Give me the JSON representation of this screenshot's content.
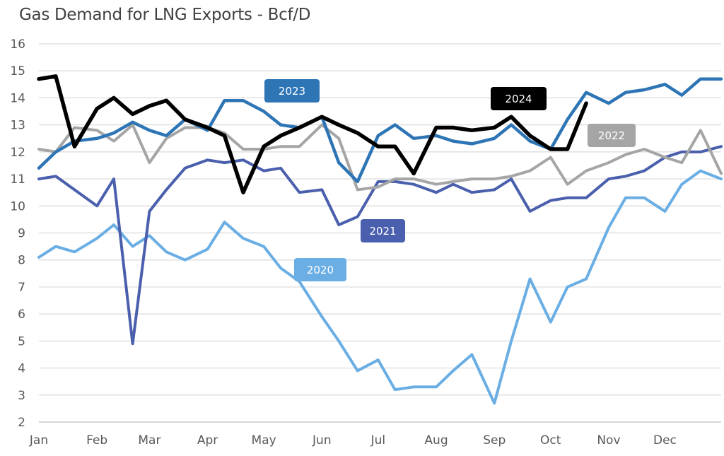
{
  "chart_data": {
    "type": "line",
    "title": "Gas Demand for LNG Exports - Bcf/D",
    "xlabel": "",
    "ylabel": "",
    "ylim": [
      2,
      16
    ],
    "yticks": [
      2,
      3,
      4,
      5,
      6,
      7,
      8,
      9,
      10,
      11,
      12,
      13,
      14,
      15,
      16
    ],
    "xticks": [
      "Jan",
      "Feb",
      "Mar",
      "Apr",
      "May",
      "Jun",
      "Jul",
      "Aug",
      "Sep",
      "Oct",
      "Nov",
      "Dec"
    ],
    "grid": "horizontal",
    "legend": "inline labels",
    "x": [
      "01-01",
      "01-10",
      "01-20",
      "02-01",
      "02-10",
      "02-20",
      "03-01",
      "03-10",
      "03-20",
      "04-01",
      "04-10",
      "04-20",
      "05-01",
      "05-10",
      "05-20",
      "06-01",
      "06-10",
      "06-20",
      "07-01",
      "07-10",
      "07-20",
      "08-01",
      "08-10",
      "08-20",
      "09-01",
      "09-10",
      "09-20",
      "10-01",
      "10-10",
      "10-20",
      "11-01",
      "11-10",
      "11-20",
      "12-01",
      "12-10",
      "12-20",
      "12-31"
    ],
    "series": [
      {
        "name": "2020",
        "color": "#6aaee4",
        "values": [
          8.1,
          8.5,
          8.3,
          8.8,
          9.3,
          8.5,
          8.9,
          8.3,
          8.0,
          8.4,
          9.4,
          8.8,
          8.5,
          7.7,
          7.2,
          5.9,
          5.0,
          3.9,
          4.3,
          3.2,
          3.3,
          3.3,
          3.9,
          4.5,
          2.7,
          5.0,
          7.3,
          5.7,
          7.0,
          7.3,
          9.2,
          10.3,
          10.3,
          9.8,
          10.8,
          11.3,
          11.0
        ]
      },
      {
        "name": "2021",
        "color": "#4a5fad",
        "values": [
          11.0,
          11.1,
          10.6,
          10.0,
          11.0,
          4.9,
          9.8,
          10.6,
          11.4,
          11.7,
          11.6,
          11.7,
          11.3,
          11.4,
          10.5,
          10.6,
          9.3,
          9.6,
          10.9,
          10.9,
          10.8,
          10.5,
          10.8,
          10.5,
          10.6,
          11.0,
          9.8,
          10.2,
          10.3,
          10.3,
          11.0,
          11.1,
          11.3,
          11.8,
          12.0,
          12.0,
          12.2
        ]
      },
      {
        "name": "2022",
        "color": "#a5a5a5",
        "values": [
          12.1,
          12.0,
          12.9,
          12.8,
          12.4,
          13.0,
          11.6,
          12.5,
          12.9,
          12.9,
          12.7,
          12.1,
          12.1,
          12.2,
          12.2,
          13.0,
          12.5,
          10.6,
          10.7,
          11.0,
          11.0,
          10.8,
          10.9,
          11.0,
          11.0,
          11.1,
          11.3,
          11.8,
          10.8,
          11.3,
          11.6,
          11.9,
          12.1,
          11.8,
          11.6,
          12.8,
          11.2
        ]
      },
      {
        "name": "2023",
        "color": "#2e75b6",
        "values": [
          11.4,
          12.0,
          12.4,
          12.5,
          12.7,
          13.1,
          12.8,
          12.6,
          13.2,
          12.8,
          13.9,
          13.9,
          13.5,
          13.0,
          12.9,
          13.3,
          11.6,
          10.9,
          12.6,
          13.0,
          12.5,
          12.6,
          12.4,
          12.3,
          12.5,
          13.0,
          12.4,
          12.1,
          13.2,
          14.2,
          13.8,
          14.2,
          14.3,
          14.5,
          14.1,
          14.7,
          14.7
        ]
      },
      {
        "name": "2024",
        "color": "#000000",
        "values": [
          14.7,
          14.8,
          12.2,
          13.6,
          14.0,
          13.4,
          13.7,
          13.9,
          13.2,
          12.9,
          12.6,
          10.5,
          12.2,
          12.6,
          12.9,
          13.3,
          13.0,
          12.7,
          12.2,
          12.2,
          11.2,
          12.9,
          12.9,
          12.8,
          12.9,
          13.3,
          12.6,
          12.1,
          12.1,
          13.8,
          null,
          null,
          null,
          null,
          null,
          null,
          null
        ]
      }
    ]
  }
}
